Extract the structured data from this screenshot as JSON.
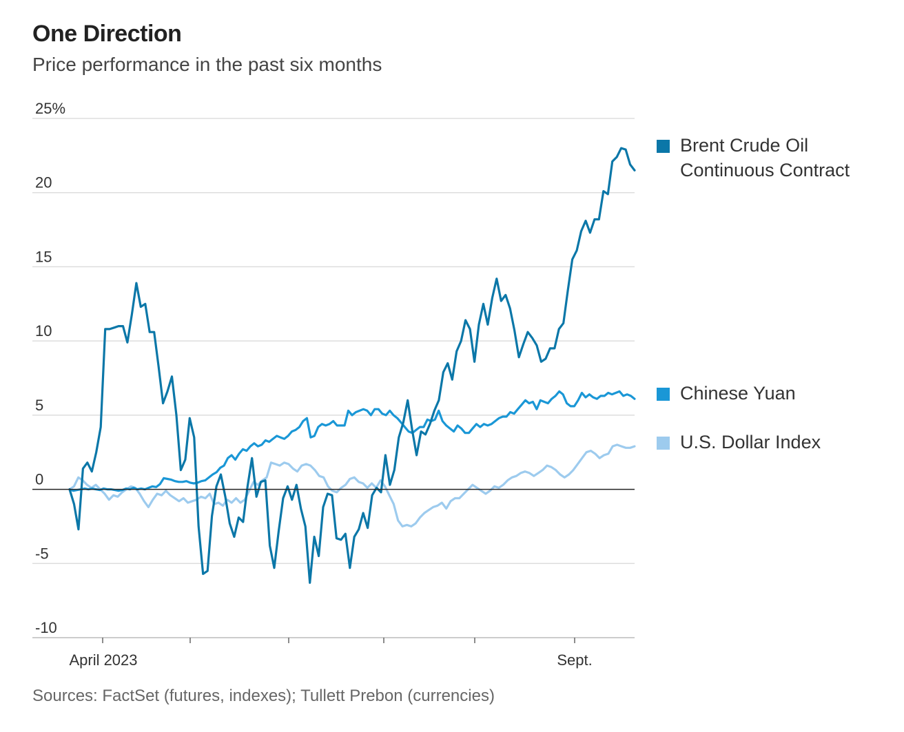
{
  "chart_data": {
    "type": "line",
    "title": "One Direction",
    "subtitle": "Price performance in the past six months",
    "source": "Sources: FactSet (futures, indexes); Tullett Prebon (currencies)",
    "ylim": [
      -10,
      25
    ],
    "yticks": [
      {
        "value": 25,
        "label": "25%"
      },
      {
        "value": 20,
        "label": "20"
      },
      {
        "value": 15,
        "label": "15"
      },
      {
        "value": 10,
        "label": "10"
      },
      {
        "value": 5,
        "label": "5"
      },
      {
        "value": 0,
        "label": "0"
      },
      {
        "value": -5,
        "label": "-5"
      },
      {
        "value": -10,
        "label": "-10"
      }
    ],
    "xtick_labels": [
      "April 2023",
      "Sept."
    ],
    "grid": "horizontal",
    "legend_placement": "right",
    "series": [
      {
        "name": "Brent Crude Oil Continuous Contract",
        "legend_lines": [
          "Brent Crude Oil",
          "Continuous Contract"
        ],
        "color": "#0b77a8",
        "values": [
          0,
          -1,
          -2.7,
          1.4,
          1.8,
          1.2,
          2.5,
          4.2,
          10.8,
          10.8,
          10.9,
          11,
          11,
          9.9,
          11.8,
          13.9,
          12.3,
          12.5,
          10.6,
          10.6,
          8.3,
          5.8,
          6.6,
          7.6,
          5,
          1.3,
          2,
          4.8,
          3.5,
          -2.5,
          -5.7,
          -5.5,
          -1.8,
          0.2,
          1,
          -0.5,
          -2.3,
          -3.2,
          -1.9,
          -2.2,
          0.2,
          2.1,
          -0.5,
          0.5,
          0.6,
          -3.8,
          -5.3,
          -2.8,
          -0.6,
          0.2,
          -0.7,
          0.3,
          -1.3,
          -2.5,
          -6.3,
          -3.2,
          -4.5,
          -1.2,
          -0.3,
          -0.4,
          -3.3,
          -3.4,
          -3,
          -5.3,
          -3.2,
          -2.7,
          -1.6,
          -2.6,
          -0.4,
          0.1,
          -0.2,
          2.3,
          0.3,
          1.3,
          3.5,
          4.5,
          6,
          4,
          2.3,
          3.9,
          3.7,
          4.4,
          5.3,
          6,
          7.9,
          8.5,
          7.4,
          9.3,
          10,
          11.4,
          10.8,
          8.6,
          11.1,
          12.5,
          11.1,
          12.9,
          14.2,
          12.7,
          13.1,
          12.2,
          10.7,
          8.9,
          9.8,
          10.6,
          10.2,
          9.7,
          8.6,
          8.8,
          9.5,
          9.5,
          10.8,
          11.2,
          13.4,
          15.5,
          16.1,
          17.4,
          18.1,
          17.3,
          18.2,
          18.2,
          20.1,
          19.9,
          22.1,
          22.4,
          23,
          22.9,
          21.9,
          21.5
        ]
      },
      {
        "name": "Chinese Yuan",
        "legend_lines": [
          "Chinese Yuan"
        ],
        "color": "#1a97d6",
        "values": [
          0,
          -0.1,
          -0.05,
          0,
          0.05,
          0,
          0.05,
          0,
          -0.05,
          0.05,
          0,
          0,
          -0.05,
          -0.1,
          -0.05,
          0.05,
          0,
          0.1,
          0,
          0.05,
          0,
          0.1,
          0.2,
          0.15,
          0.35,
          0.75,
          0.7,
          0.65,
          0.55,
          0.5,
          0.5,
          0.55,
          0.45,
          0.4,
          0.45,
          0.55,
          0.6,
          0.8,
          1,
          1.15,
          1.45,
          1.6,
          2.1,
          2.3,
          2,
          2.4,
          2.7,
          2.6,
          2.9,
          3.1,
          2.9,
          3,
          3.3,
          3.2,
          3.4,
          3.6,
          3.5,
          3.4,
          3.6,
          3.9,
          4,
          4.2,
          4.6,
          4.8,
          3.5,
          3.6,
          4.2,
          4.4,
          4.3,
          4.4,
          4.6,
          4.3,
          4.3,
          4.3,
          5.3,
          5,
          5.2,
          5.3,
          5.4,
          5.3,
          5,
          5.4,
          5.4,
          5.1,
          5,
          5.3,
          5,
          4.8,
          4.5,
          4.2,
          3.9,
          3.8,
          4,
          4.2,
          4.2,
          4.7,
          4.6,
          4.7,
          5.3,
          4.6,
          4.3,
          4.1,
          3.9,
          4.3,
          4.1,
          3.8,
          3.8,
          4.1,
          4.4,
          4.2,
          4.4,
          4.3,
          4.4,
          4.6,
          4.8,
          4.9,
          4.9,
          5.2,
          5.1,
          5.4,
          5.7,
          6,
          5.8,
          5.9,
          5.4,
          6,
          5.9,
          5.8,
          6.1,
          6.3,
          6.6,
          6.4,
          5.8,
          5.6,
          5.6,
          6,
          6.5,
          6.2,
          6.4,
          6.2,
          6.1,
          6.3,
          6.3,
          6.5,
          6.4,
          6.5,
          6.6,
          6.3,
          6.4,
          6.3,
          6.1
        ]
      },
      {
        "name": "U.S. Dollar Index",
        "legend_lines": [
          "U.S. Dollar Index"
        ],
        "color": "#9dcbee",
        "values": [
          0,
          0.2,
          0.8,
          0.6,
          0.3,
          0.1,
          0.3,
          0,
          -0.3,
          -0.7,
          -0.4,
          -0.5,
          -0.2,
          0,
          0.2,
          0.1,
          -0.3,
          -0.8,
          -1.2,
          -0.7,
          -0.3,
          -0.4,
          -0.1,
          -0.4,
          -0.6,
          -0.8,
          -0.6,
          -0.9,
          -0.8,
          -0.7,
          -0.5,
          -0.6,
          -0.3,
          -1,
          -0.9,
          -1.1,
          -0.7,
          -0.9,
          -0.6,
          -0.9,
          -0.7,
          -0.1,
          0.5,
          0.3,
          0.6,
          0.8,
          1.8,
          1.7,
          1.6,
          1.8,
          1.7,
          1.4,
          1.2,
          1.6,
          1.7,
          1.6,
          1.3,
          0.9,
          0.8,
          0.2,
          -0.1,
          -0.2,
          0.1,
          0.3,
          0.7,
          0.8,
          0.5,
          0.4,
          0.1,
          0.4,
          0.1,
          0.6,
          0.2,
          -0.4,
          -1,
          -2.1,
          -2.5,
          -2.4,
          -2.5,
          -2.3,
          -1.9,
          -1.6,
          -1.4,
          -1.2,
          -1.1,
          -0.9,
          -1.3,
          -0.8,
          -0.6,
          -0.6,
          -0.3,
          0,
          0.3,
          0.1,
          -0.1,
          -0.3,
          -0.1,
          0.2,
          0.1,
          0.3,
          0.6,
          0.8,
          0.9,
          1.1,
          1.2,
          1.1,
          0.9,
          1.1,
          1.3,
          1.6,
          1.5,
          1.3,
          1,
          0.8,
          1,
          1.3,
          1.7,
          2.1,
          2.5,
          2.6,
          2.4,
          2.1,
          2.3,
          2.4,
          2.9,
          3,
          2.9,
          2.8,
          2.8,
          2.9
        ]
      }
    ]
  }
}
